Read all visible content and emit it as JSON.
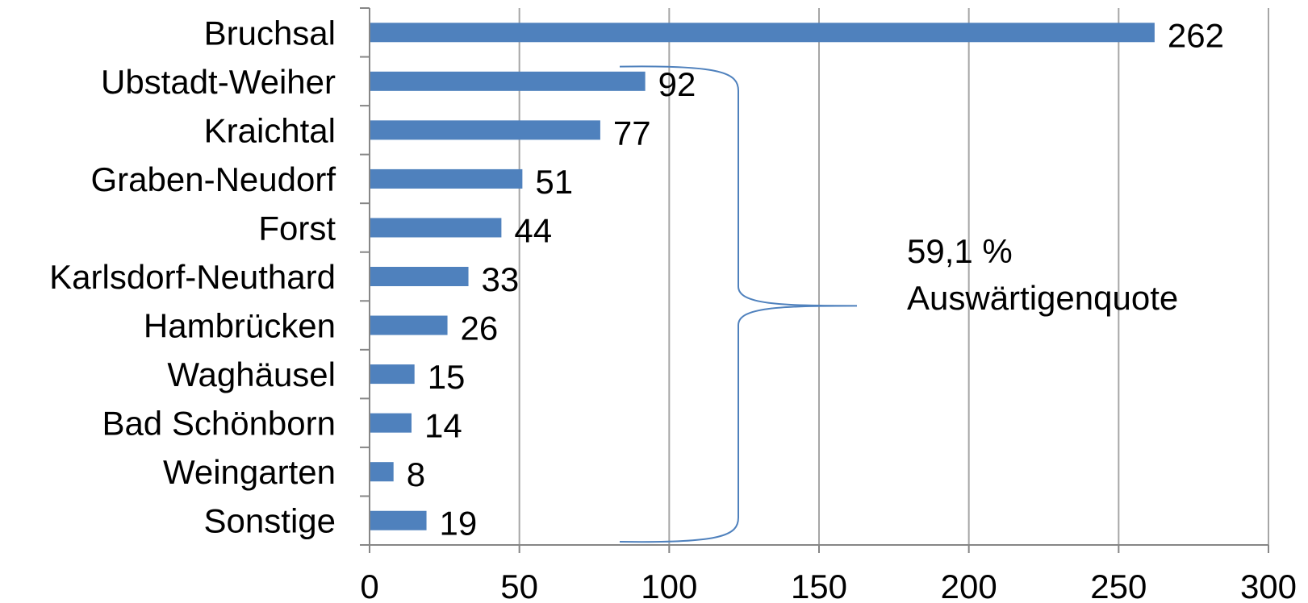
{
  "chart_data": {
    "type": "bar",
    "orientation": "horizontal",
    "categories": [
      "Bruchsal",
      "Ubstadt-Weiher",
      "Kraichtal",
      "Graben-Neudorf",
      "Forst",
      "Karlsdorf-Neuthard",
      "Hambrücken",
      "Waghäusel",
      "Bad Schönborn",
      "Weingarten",
      "Sonstige"
    ],
    "values": [
      262,
      92,
      77,
      51,
      44,
      33,
      26,
      15,
      14,
      8,
      19
    ],
    "xlim": [
      0,
      300
    ],
    "xticks": [
      0,
      50,
      100,
      150,
      200,
      250,
      300
    ],
    "grid": true,
    "bar_color": "#4f81bd",
    "annotation": {
      "line1": "59,1 %",
      "line2": "Auswärtigenquote"
    }
  }
}
